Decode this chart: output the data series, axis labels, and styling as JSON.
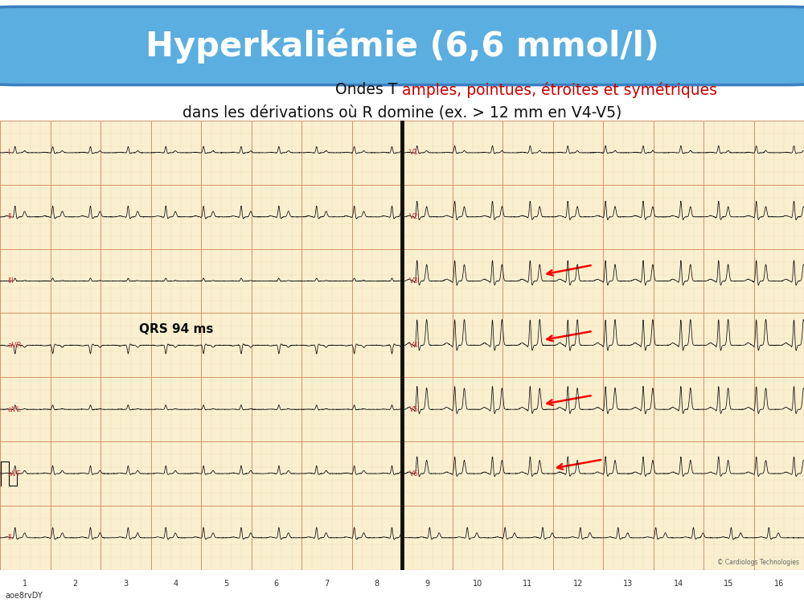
{
  "title": "Hyperkaliémie (6,6 mmol/l)",
  "title_color": "#FFFFFF",
  "title_bg_color": "#5BAEE0",
  "title_bg_border_color": "#3A80C0",
  "subtitle_black": "Ondes T ",
  "subtitle_red": "amples, pointues, étroites et symétriques",
  "subtitle_line2": "dans les dérivations où R domine (ex. > 12 mm en V4-V5)",
  "subtitle_color_black": "#111111",
  "subtitle_color_red": "#CC0000",
  "annotation_text": "QRS 94 ms",
  "watermark_text": "aoe8rvDY",
  "copyright_text": "© Cardiologs Technologies",
  "bg_color": "#FFFFFF",
  "ecg_bg_color": "#FAF0D0",
  "ecg_grid_major_color": "#D4956A",
  "ecg_grid_minor_color": "#EDD5A8",
  "ecg_line_color": "#0A0A0A",
  "ecg_label_color": "#CC3333",
  "figsize": [
    10.0,
    7.5
  ],
  "dpi": 100
}
